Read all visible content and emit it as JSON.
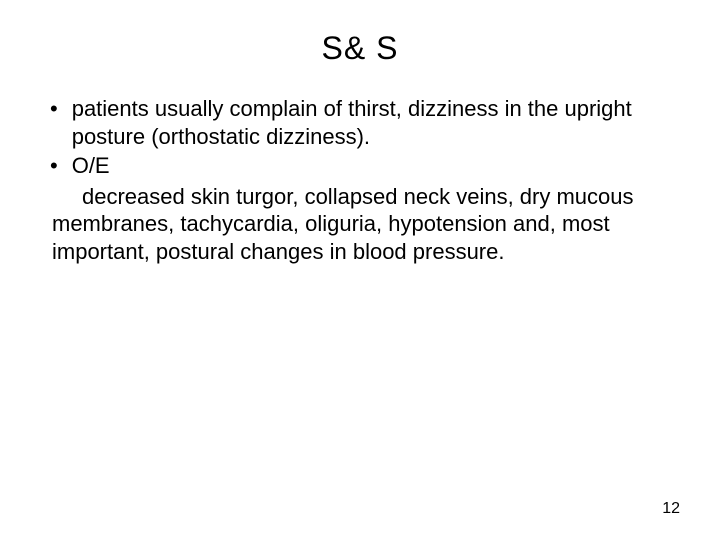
{
  "slide": {
    "title": "S& S",
    "bullets": [
      {
        "marker": "•",
        "text": "patients usually complain of thirst, dizziness in the upright posture (orthostatic dizziness)."
      },
      {
        "marker": "•",
        "text": "O/E"
      }
    ],
    "continuation": " decreased skin turgor, collapsed neck veins, dry mucous membranes, tachycardia, oliguria, hypotension  and, most important, postural changes in blood pressure.",
    "page_number": "12",
    "styling": {
      "background_color": "#ffffff",
      "text_color": "#000000",
      "title_fontsize": 32,
      "body_fontsize": 22,
      "page_number_fontsize": 16,
      "font_family": "Arial"
    }
  }
}
